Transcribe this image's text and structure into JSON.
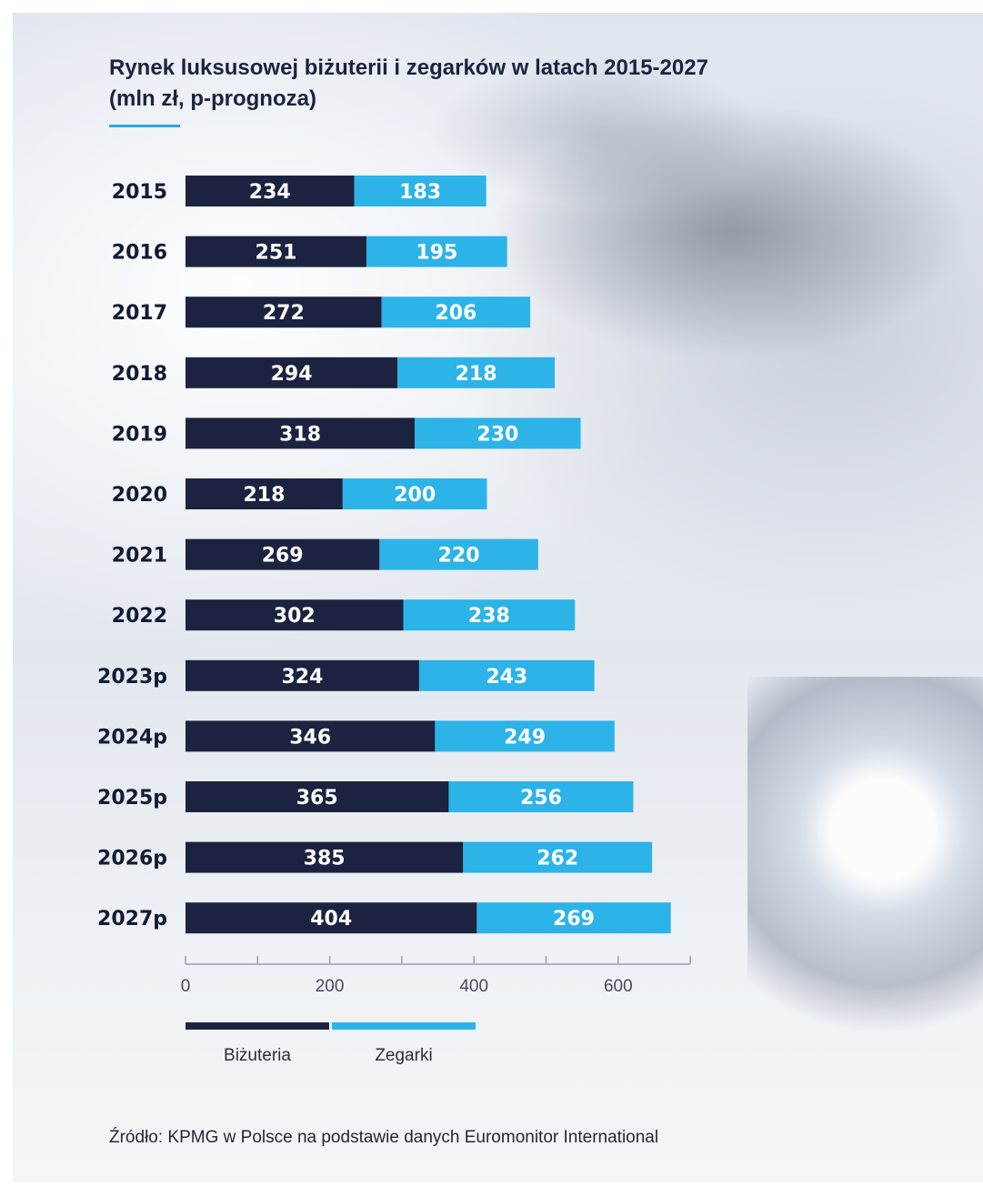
{
  "header": {
    "title_line1": "Rynek luksusowej biżuterii i zegarków w latach 2015-2027",
    "title_line2": "(mln zł, p-prognoza)"
  },
  "colors": {
    "jewelry": "#1b2340",
    "watches": "#2cb3e8",
    "axis": "#9aa0ab"
  },
  "chart_data": {
    "type": "bar",
    "orientation": "horizontal",
    "stacked": true,
    "categories": [
      "2015",
      "2016",
      "2017",
      "2018",
      "2019",
      "2020",
      "2021",
      "2022",
      "2023p",
      "2024p",
      "2025p",
      "2026p",
      "2027p"
    ],
    "series": [
      {
        "name": "Biżuteria",
        "values": [
          234,
          251,
          272,
          294,
          318,
          218,
          269,
          302,
          324,
          346,
          365,
          385,
          404
        ]
      },
      {
        "name": "Zegarki",
        "values": [
          183,
          195,
          206,
          218,
          230,
          200,
          220,
          238,
          243,
          249,
          256,
          262,
          269
        ]
      }
    ],
    "x_ticks": [
      "0",
      "200",
      "400",
      "600"
    ],
    "xlim": [
      0,
      700
    ],
    "grid": false,
    "legend_position": "bottom"
  },
  "legend": {
    "jewelry_label": "Biżuteria",
    "watches_label": "Zegarki"
  },
  "footer": {
    "source": "Źródło: KPMG w Polsce na podstawie danych Euromonitor International"
  }
}
